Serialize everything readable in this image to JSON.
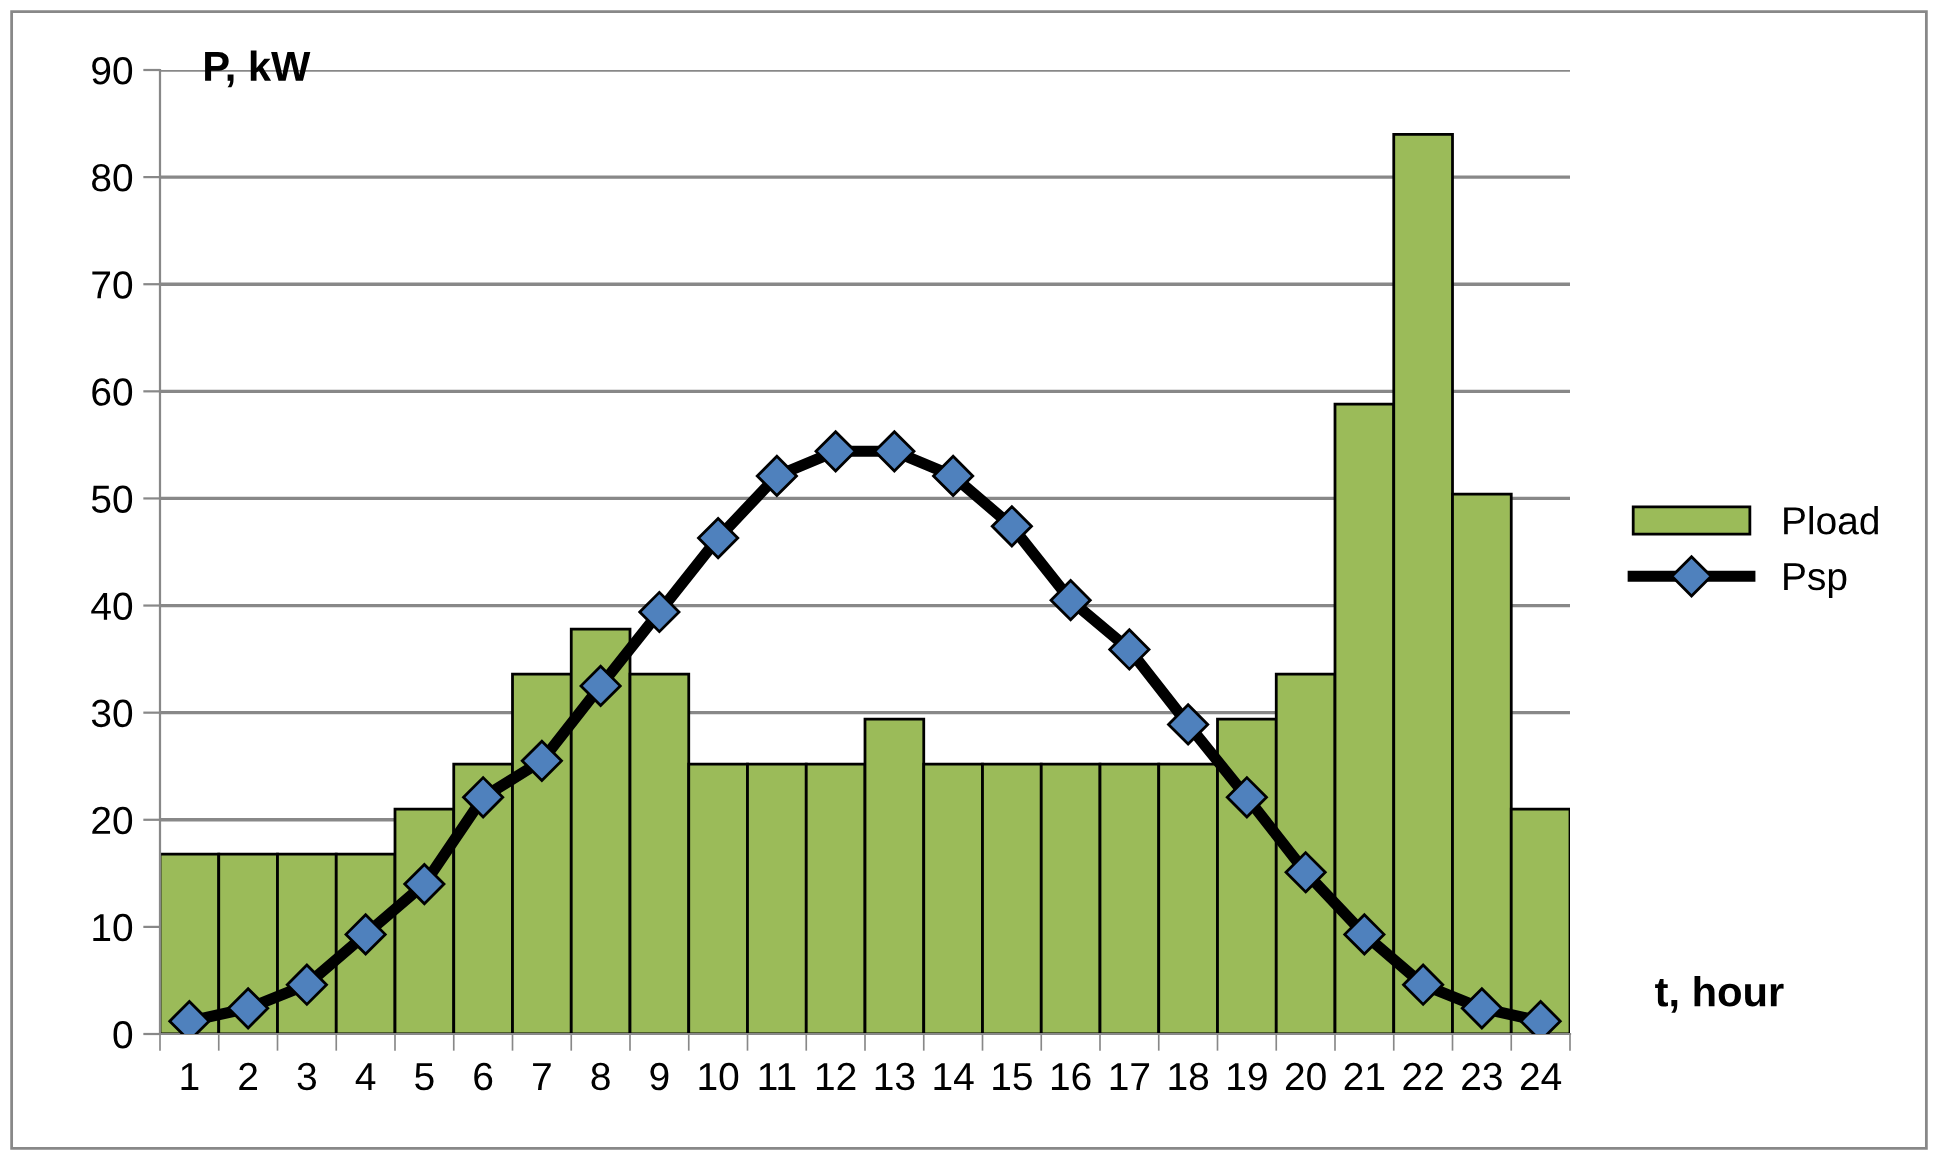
{
  "chart_data": {
    "type": "bar",
    "ylabel": "P, kW",
    "xlabel": "t, hour",
    "categories": [
      "1",
      "2",
      "3",
      "4",
      "5",
      "6",
      "7",
      "8",
      "9",
      "10",
      "11",
      "12",
      "13",
      "14",
      "15",
      "16",
      "17",
      "18",
      "19",
      "20",
      "21",
      "22",
      "23",
      "24"
    ],
    "series": [
      {
        "name": "Pload",
        "color": "#9bbb59",
        "values": [
          16.8,
          16.8,
          16.8,
          16.8,
          21,
          25.2,
          33.6,
          37.8,
          33.6,
          25.2,
          25.2,
          25.2,
          29.4,
          25.2,
          25.2,
          25.2,
          25.2,
          25.2,
          29.4,
          33.6,
          58.8,
          84,
          50.4,
          21
        ]
      },
      {
        "name": "Psp",
        "type": "line",
        "color": "#000000",
        "marker": "diamond",
        "values": [
          1.2,
          2.4,
          4.6,
          9.3,
          14,
          22.1,
          25.5,
          32.5,
          39.4,
          46.3,
          52.1,
          54.4,
          54.4,
          52.1,
          47.4,
          40.5,
          35.9,
          28.9,
          22.1,
          15.1,
          9.3,
          4.6,
          2.4,
          1.2
        ]
      }
    ],
    "ylim": [
      0,
      90
    ],
    "yticks": [
      0,
      10,
      20,
      30,
      40,
      50,
      60,
      70,
      80,
      90
    ],
    "grid": "y",
    "legend": "right"
  }
}
